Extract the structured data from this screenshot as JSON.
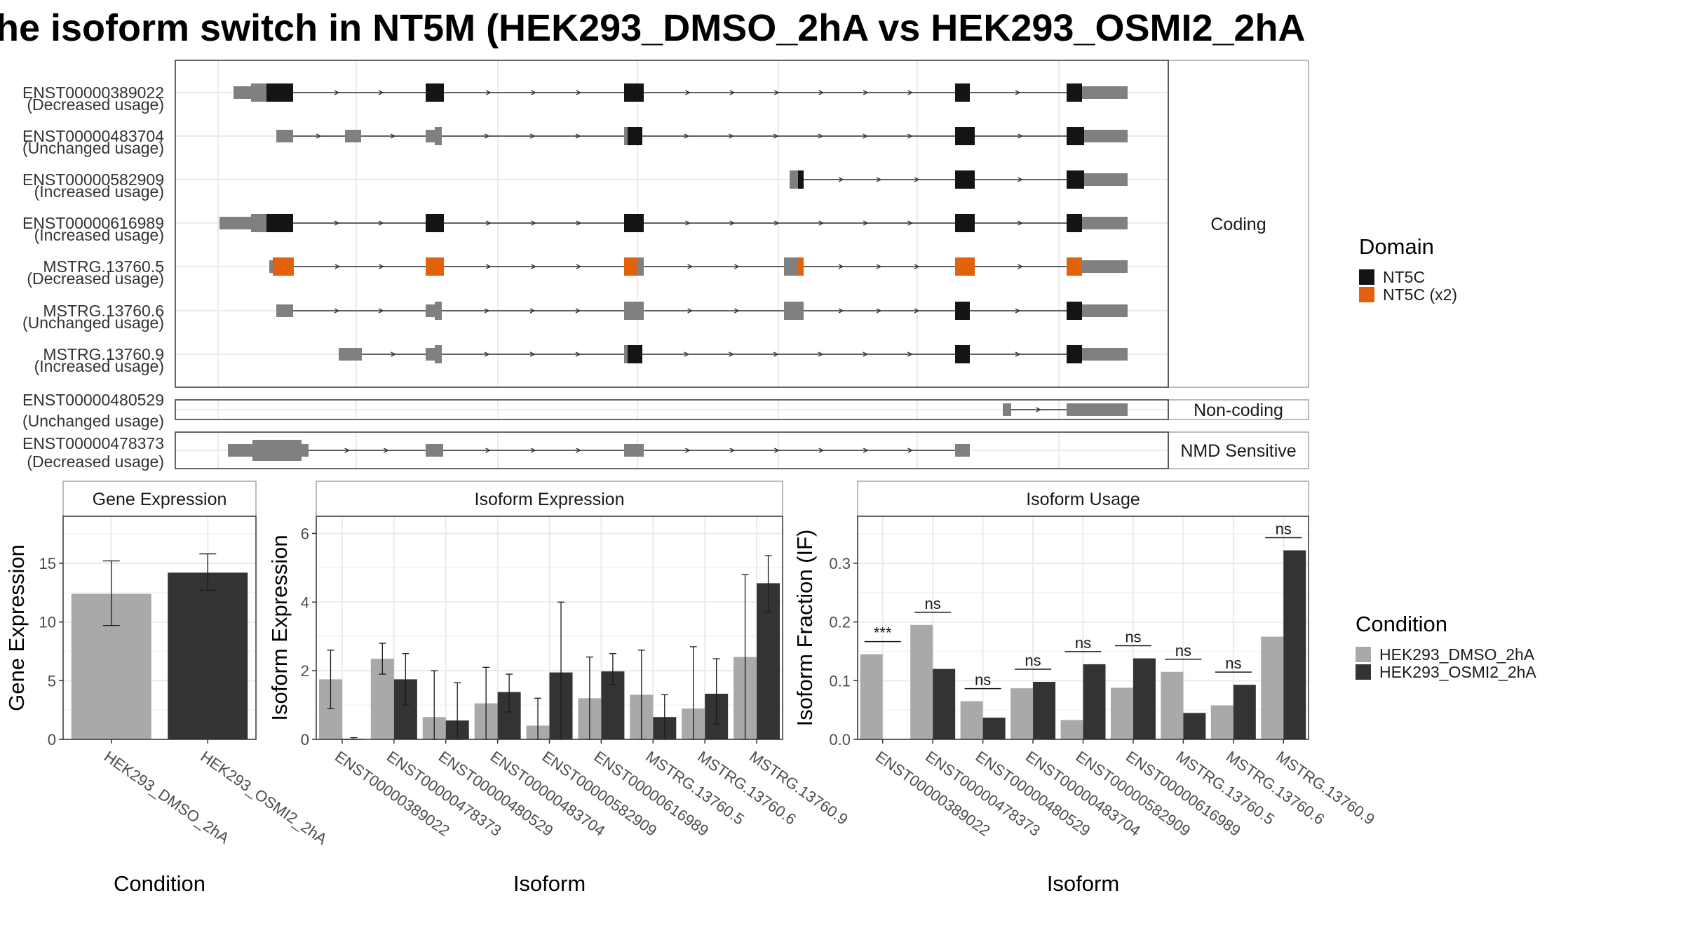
{
  "title": "he isoform switch in NT5M (HEK293_DMSO_2hA vs HEK293_OSMI2_2hA",
  "colors": {
    "exon_utr": "#808080",
    "nt5c": "#141414",
    "nt5c_x2": "#e2620c",
    "cond1": "#a9a9a9",
    "cond2": "#333333",
    "grid": "#ebebeb",
    "panel_border": "#333333",
    "strip_border": "#a6a6a6"
  },
  "chart_data": [
    {
      "type": "transcript_structure",
      "groups": [
        {
          "label": "Coding",
          "transcripts": [
            {
              "id": "ENST00000389022",
              "usage": "(Decreased usage)"
            },
            {
              "id": "ENST00000483704",
              "usage": "(Unchanged usage)"
            },
            {
              "id": "ENST00000582909",
              "usage": "(Increased usage)"
            },
            {
              "id": "ENST00000616989",
              "usage": "(Increased usage)"
            },
            {
              "id": "MSTRG.13760.5",
              "usage": "(Decreased usage)"
            },
            {
              "id": "MSTRG.13760.6",
              "usage": "(Unchanged usage)"
            },
            {
              "id": "MSTRG.13760.9",
              "usage": "(Increased usage)"
            }
          ]
        },
        {
          "label": "Non-coding",
          "transcripts": [
            {
              "id": "ENST00000480529",
              "usage": "(Unchanged usage)"
            }
          ]
        },
        {
          "label": "NMD Sensitive",
          "transcripts": [
            {
              "id": "ENST00000478373",
              "usage": "(Decreased usage)"
            }
          ]
        }
      ],
      "legend": {
        "title": "Domain",
        "items": [
          "NT5C",
          "NT5C (x2)"
        ]
      }
    },
    {
      "type": "bar",
      "facet": "Gene Expression",
      "xlabel": "Condition",
      "ylabel": "Gene Expression",
      "ylim": [
        0,
        19
      ],
      "yticks": [
        0,
        5,
        10,
        15
      ],
      "categories": [
        "HEK293_DMSO_2hA",
        "HEK293_OSMI2_2hA"
      ],
      "values": [
        12.4,
        14.2
      ],
      "errors": [
        [
          9.7,
          15.2
        ],
        [
          12.7,
          15.8
        ]
      ]
    },
    {
      "type": "bar",
      "facet": "Isoform Expression",
      "xlabel": "Isoform",
      "ylabel": "Isoform Expression",
      "ylim": [
        0,
        6.5
      ],
      "yticks": [
        0,
        2,
        4,
        6
      ],
      "categories": [
        "ENST00000389022",
        "ENST00000478373",
        "ENST00000480529",
        "ENST00000483704",
        "ENST00000582909",
        "ENST00000616989",
        "MSTRG.13760.5",
        "MSTRG.13760.6",
        "MSTRG.13760.9"
      ],
      "series": [
        {
          "name": "HEK293_DMSO_2hA",
          "values": [
            1.75,
            2.35,
            0.65,
            1.05,
            0.4,
            1.2,
            1.3,
            0.9,
            2.4
          ],
          "errors": [
            [
              0.9,
              2.6
            ],
            [
              1.9,
              2.8
            ],
            [
              0,
              2.0
            ],
            [
              0,
              2.1
            ],
            [
              0,
              1.2
            ],
            [
              0,
              2.4
            ],
            [
              0,
              2.6
            ],
            [
              0,
              2.7
            ],
            [
              0,
              4.8
            ]
          ]
        },
        {
          "name": "HEK293_OSMI2_2hA",
          "values": [
            0.02,
            1.75,
            0.55,
            1.38,
            1.95,
            1.98,
            0.65,
            1.33,
            4.55
          ],
          "errors": [
            [
              0,
              0.05
            ],
            [
              1.0,
              2.5
            ],
            [
              0,
              1.65
            ],
            [
              0.8,
              1.9
            ],
            [
              0,
              4.0
            ],
            [
              1.6,
              2.5
            ],
            [
              0,
              1.3
            ],
            [
              0.45,
              2.35
            ],
            [
              3.7,
              5.35
            ]
          ]
        }
      ]
    },
    {
      "type": "bar",
      "facet": "Isoform Usage",
      "xlabel": "Isoform",
      "ylabel": "Isoform Fraction (IF)",
      "ylim": [
        0,
        0.38
      ],
      "yticks": [
        0.0,
        0.1,
        0.2,
        0.3
      ],
      "categories": [
        "ENST00000389022",
        "ENST00000478373",
        "ENST00000480529",
        "ENST00000483704",
        "ENST00000582909",
        "ENST00000616989",
        "MSTRG.13760.5",
        "MSTRG.13760.6",
        "MSTRG.13760.9"
      ],
      "series": [
        {
          "name": "HEK293_DMSO_2hA",
          "values": [
            0.145,
            0.195,
            0.065,
            0.087,
            0.033,
            0.088,
            0.115,
            0.058,
            0.175
          ]
        },
        {
          "name": "HEK293_OSMI2_2hA",
          "values": [
            0.0,
            0.12,
            0.037,
            0.098,
            0.128,
            0.138,
            0.045,
            0.093,
            0.322
          ]
        }
      ],
      "significance": [
        "***",
        "ns",
        "ns",
        "ns",
        "ns",
        "ns",
        "ns",
        "ns",
        "ns"
      ],
      "legend": {
        "title": "Condition",
        "items": [
          "HEK293_DMSO_2hA",
          "HEK293_OSMI2_2hA"
        ]
      }
    }
  ]
}
